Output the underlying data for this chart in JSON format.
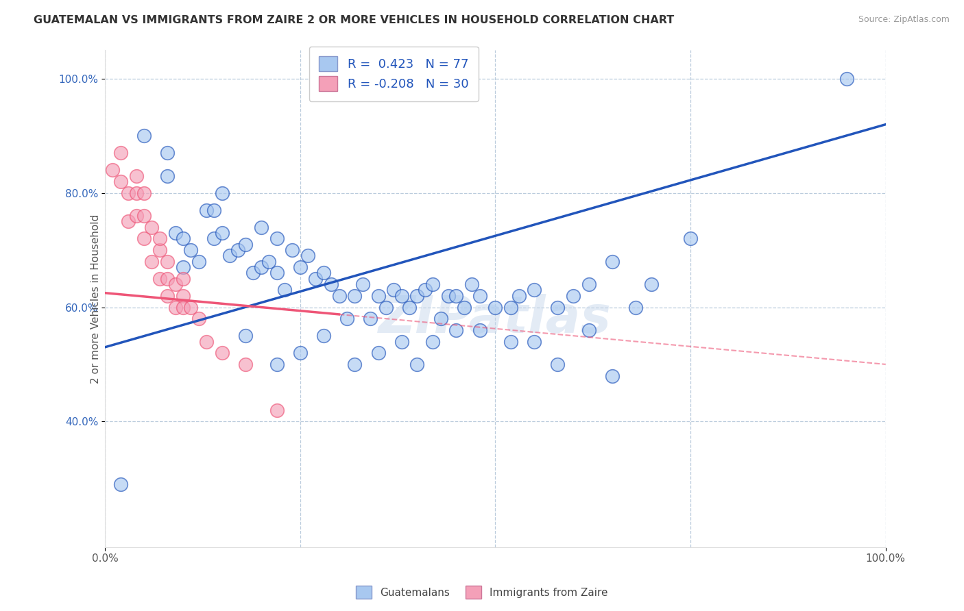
{
  "title": "GUATEMALAN VS IMMIGRANTS FROM ZAIRE 2 OR MORE VEHICLES IN HOUSEHOLD CORRELATION CHART",
  "source": "Source: ZipAtlas.com",
  "ylabel": "2 or more Vehicles in Household",
  "xlim": [
    0.0,
    1.0
  ],
  "ylim": [
    0.18,
    1.05
  ],
  "blue_color": "#A8C8F0",
  "pink_color": "#F4A0B8",
  "line_blue": "#2255BB",
  "line_pink": "#EE5577",
  "watermark": "ZIPatlas",
  "grid_color": "#BBCCDD",
  "ytick_positions": [
    0.4,
    0.6,
    0.8,
    1.0
  ],
  "ytick_labels": [
    "40.0%",
    "60.0%",
    "80.0%",
    "100.0%"
  ],
  "xtick_positions": [
    0.0,
    1.0
  ],
  "xtick_labels": [
    "0.0%",
    "100.0%"
  ],
  "blue_R": 0.423,
  "blue_N": 77,
  "pink_R": -0.208,
  "pink_N": 30,
  "blue_line_x0": 0.0,
  "blue_line_y0": 0.53,
  "blue_line_x1": 1.0,
  "blue_line_y1": 0.92,
  "pink_line_x0": 0.0,
  "pink_line_y0": 0.625,
  "pink_line_x1": 1.0,
  "pink_line_y1": 0.5,
  "blue_scatter_x": [
    0.02,
    0.05,
    0.08,
    0.08,
    0.09,
    0.1,
    0.1,
    0.11,
    0.12,
    0.13,
    0.14,
    0.14,
    0.15,
    0.15,
    0.16,
    0.17,
    0.18,
    0.19,
    0.2,
    0.2,
    0.21,
    0.22,
    0.22,
    0.23,
    0.24,
    0.25,
    0.26,
    0.27,
    0.28,
    0.29,
    0.3,
    0.31,
    0.32,
    0.33,
    0.34,
    0.35,
    0.36,
    0.37,
    0.38,
    0.39,
    0.4,
    0.41,
    0.42,
    0.43,
    0.44,
    0.45,
    0.46,
    0.47,
    0.48,
    0.5,
    0.52,
    0.53,
    0.55,
    0.58,
    0.6,
    0.62,
    0.65,
    0.68,
    0.7,
    0.75,
    0.18,
    0.22,
    0.25,
    0.28,
    0.32,
    0.35,
    0.38,
    0.4,
    0.42,
    0.45,
    0.48,
    0.52,
    0.55,
    0.58,
    0.62,
    0.65,
    0.95
  ],
  "blue_scatter_y": [
    0.29,
    0.9,
    0.87,
    0.83,
    0.73,
    0.67,
    0.72,
    0.7,
    0.68,
    0.77,
    0.72,
    0.77,
    0.8,
    0.73,
    0.69,
    0.7,
    0.71,
    0.66,
    0.74,
    0.67,
    0.68,
    0.66,
    0.72,
    0.63,
    0.7,
    0.67,
    0.69,
    0.65,
    0.66,
    0.64,
    0.62,
    0.58,
    0.62,
    0.64,
    0.58,
    0.62,
    0.6,
    0.63,
    0.62,
    0.6,
    0.62,
    0.63,
    0.64,
    0.58,
    0.62,
    0.62,
    0.6,
    0.64,
    0.62,
    0.6,
    0.6,
    0.62,
    0.63,
    0.6,
    0.62,
    0.64,
    0.68,
    0.6,
    0.64,
    0.72,
    0.55,
    0.5,
    0.52,
    0.55,
    0.5,
    0.52,
    0.54,
    0.5,
    0.54,
    0.56,
    0.56,
    0.54,
    0.54,
    0.5,
    0.56,
    0.48,
    1.0
  ],
  "pink_scatter_x": [
    0.01,
    0.02,
    0.02,
    0.03,
    0.03,
    0.04,
    0.04,
    0.04,
    0.05,
    0.05,
    0.05,
    0.06,
    0.06,
    0.07,
    0.07,
    0.07,
    0.08,
    0.08,
    0.08,
    0.09,
    0.09,
    0.1,
    0.1,
    0.1,
    0.11,
    0.12,
    0.13,
    0.15,
    0.18,
    0.22
  ],
  "pink_scatter_y": [
    0.84,
    0.87,
    0.82,
    0.8,
    0.75,
    0.8,
    0.76,
    0.83,
    0.76,
    0.8,
    0.72,
    0.74,
    0.68,
    0.7,
    0.65,
    0.72,
    0.65,
    0.68,
    0.62,
    0.64,
    0.6,
    0.62,
    0.6,
    0.65,
    0.6,
    0.58,
    0.54,
    0.52,
    0.5,
    0.42
  ]
}
